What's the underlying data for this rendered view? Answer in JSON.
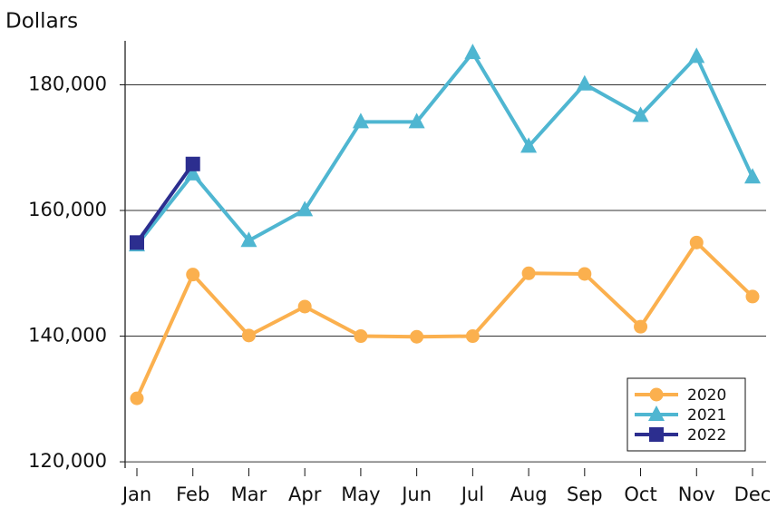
{
  "chart_data": {
    "type": "line",
    "y_axis_label": "Dollars",
    "categories": [
      "Jan",
      "Feb",
      "Mar",
      "Apr",
      "May",
      "Jun",
      "Jul",
      "Aug",
      "Sep",
      "Oct",
      "Nov",
      "Dec"
    ],
    "series": [
      {
        "name": "2020",
        "color": "#fbb04e",
        "marker": "circle",
        "values": [
          130100,
          149800,
          140100,
          144700,
          140000,
          139900,
          140000,
          150000,
          149900,
          141500,
          154900,
          146300
        ]
      },
      {
        "name": "2021",
        "color": "#4fb6d1",
        "marker": "triangle",
        "values": [
          154500,
          165800,
          155200,
          160100,
          174100,
          174100,
          185100,
          170200,
          180100,
          175100,
          184500,
          165300
        ]
      },
      {
        "name": "2022",
        "color": "#2c2e8f",
        "marker": "square",
        "values": [
          154900,
          167400,
          null,
          null,
          null,
          null,
          null,
          null,
          null,
          null,
          null,
          null
        ]
      }
    ],
    "ylim": [
      119000,
      187000
    ],
    "yticks": [
      {
        "value": 120000,
        "label": "120,000"
      },
      {
        "value": 140000,
        "label": "140,000"
      },
      {
        "value": 160000,
        "label": "160,000"
      },
      {
        "value": 180000,
        "label": "180,000"
      }
    ],
    "grid": true,
    "legend_position": "lower right"
  }
}
